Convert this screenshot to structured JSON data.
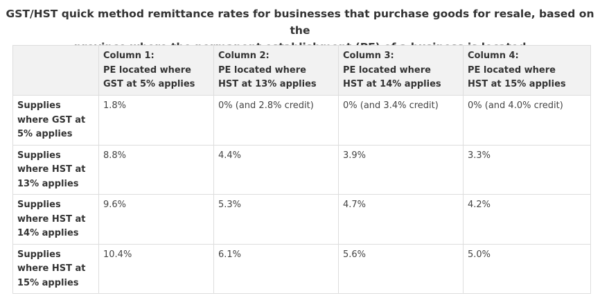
{
  "caption": {
    "line1": "GST/HST quick method remittance rates for businesses that purchase goods for resale, based on the",
    "line2": "province where the permanent establishment (PE) of a business is located"
  },
  "table": {
    "corner": "",
    "columns": [
      {
        "label": "Column 1:",
        "desc1": "PE located where",
        "desc2": "GST at 5% applies"
      },
      {
        "label": "Column 2:",
        "desc1": "PE located where",
        "desc2": "HST at 13% applies"
      },
      {
        "label": "Column 3:",
        "desc1": "PE located where",
        "desc2": "HST at 14% applies"
      },
      {
        "label": "Column 4:",
        "desc1": "PE located where",
        "desc2": "HST at 15% applies"
      }
    ],
    "rows": [
      {
        "header": "Supplies where GST at 5% applies",
        "cells": [
          "1.8%",
          "0% (and 2.8% credit)",
          "0% (and 3.4% credit)",
          "0% (and 4.0% credit)"
        ]
      },
      {
        "header": "Supplies where HST at 13% applies",
        "cells": [
          "8.8%",
          "4.4%",
          "3.9%",
          "3.3%"
        ]
      },
      {
        "header": "Supplies where HST at 14% applies",
        "cells": [
          "9.6%",
          "5.3%",
          "4.7%",
          "4.2%"
        ]
      },
      {
        "header": "Supplies where HST at 15% applies",
        "cells": [
          "10.4%",
          "6.1%",
          "5.6%",
          "5.0%"
        ]
      }
    ]
  },
  "colors": {
    "header_bg": "#f2f2f2",
    "border": "#dddddd",
    "text": "#333333"
  }
}
